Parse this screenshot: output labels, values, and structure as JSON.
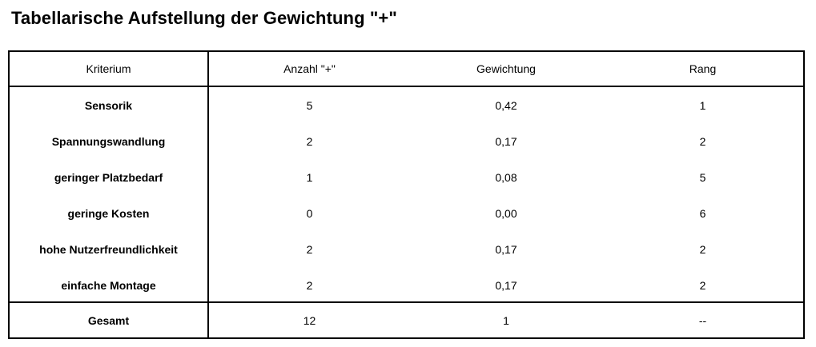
{
  "title": "Tabellarische Aufstellung der Gewichtung \"+\"",
  "table": {
    "headers": [
      "Kriterium",
      "Anzahl \"+\"",
      "Gewichtung",
      "Rang"
    ],
    "rows": [
      [
        "Sensorik",
        "5",
        "0,42",
        "1"
      ],
      [
        "Spannungswandlung",
        "2",
        "0,17",
        "2"
      ],
      [
        "geringer Platzbedarf",
        "1",
        "0,08",
        "5"
      ],
      [
        "geringe Kosten",
        "0",
        "0,00",
        "6"
      ],
      [
        "hohe Nutzerfreundlichkeit",
        "2",
        "0,17",
        "2"
      ],
      [
        "einfache Montage",
        "2",
        "0,17",
        "2"
      ]
    ],
    "total": [
      "Gesamt",
      "12",
      "1",
      "--"
    ]
  }
}
